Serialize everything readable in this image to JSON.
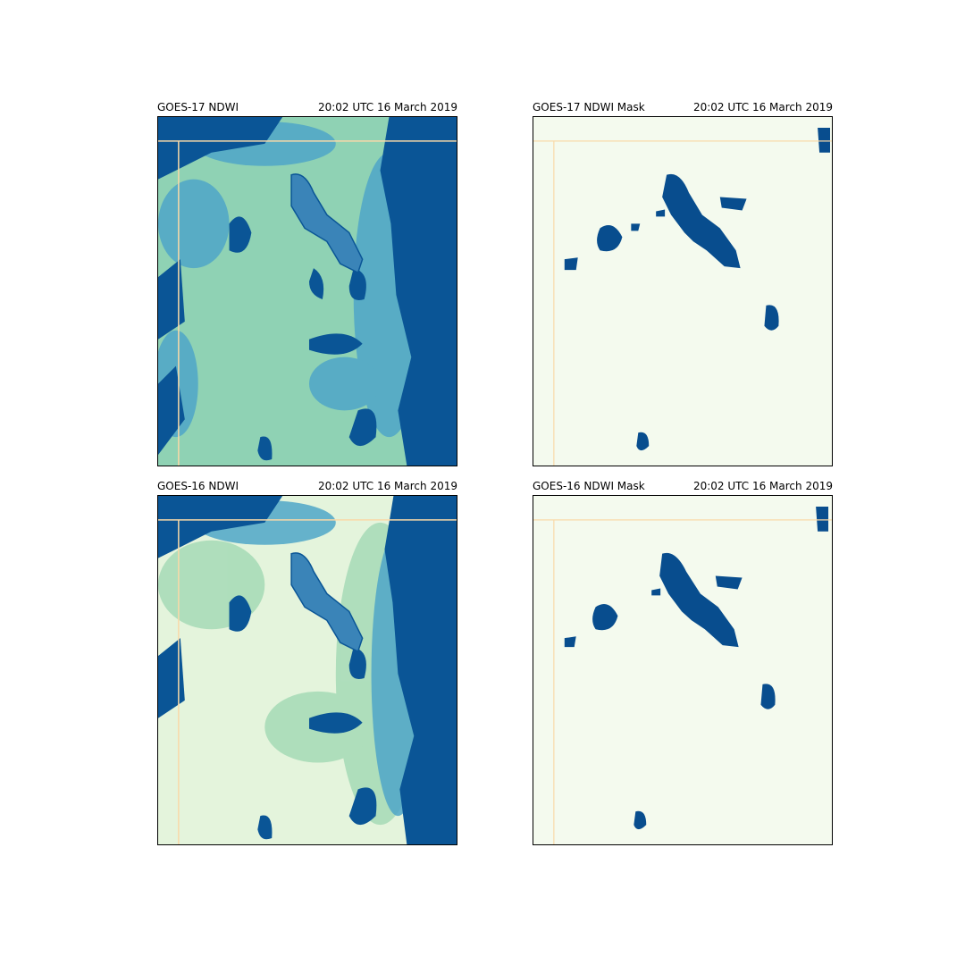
{
  "panels": {
    "top_left": {
      "title": "GOES-17 NDWI",
      "time": "20:02 UTC 16 March 2019",
      "type": "ndwi"
    },
    "top_right": {
      "title": "GOES-17 NDWI Mask",
      "time": "20:02 UTC 16 March 2019",
      "type": "mask"
    },
    "bottom_left": {
      "title": "GOES-16 NDWI",
      "time": "20:02 UTC 16 March 2019",
      "type": "ndwi"
    },
    "bottom_right": {
      "title": "GOES-16 NDWI Mask",
      "time": "20:02 UTC 16 March 2019",
      "type": "mask"
    }
  },
  "colors": {
    "ndwi_low_goes17": "#8fd2b4",
    "ndwi_low_goes16": "#e4f4dc",
    "ndwi_mid": "#4fa6c8",
    "ndwi_high": "#0a5596",
    "mask_background": "#f4faee",
    "mask_water": "#084d8e",
    "boundary_line": "#f9d9a8"
  }
}
